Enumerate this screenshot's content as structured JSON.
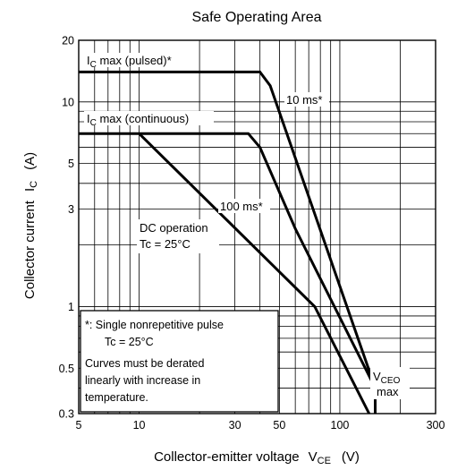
{
  "chart_data": {
    "type": "line",
    "title": "Safe Operating Area",
    "xscale": "log",
    "yscale": "log",
    "xlim": [
      5,
      300
    ],
    "ylim": [
      0.3,
      20
    ],
    "xlabel": {
      "main": "Collector-emitter voltage",
      "symbol": "V",
      "sub": "CE",
      "unit": "(V)"
    },
    "ylabel": {
      "main": "Collector current",
      "symbol": "I",
      "sub": "C",
      "unit": "(A)"
    },
    "xticks": [
      5,
      10,
      30,
      50,
      100,
      300
    ],
    "xtick_labels": [
      "5",
      "10",
      "30",
      "50",
      "100",
      "300"
    ],
    "yticks": [
      0.3,
      0.5,
      1,
      3,
      5,
      10,
      20
    ],
    "ytick_labels": [
      "0.3",
      "0.5",
      "1",
      "3",
      "5",
      "10",
      "20"
    ],
    "grid": true,
    "series": [
      {
        "name": "10 ms*",
        "points": [
          [
            5,
            14
          ],
          [
            40,
            14
          ],
          [
            45,
            12
          ],
          [
            150,
            0.4
          ],
          [
            150,
            0.3
          ]
        ]
      },
      {
        "name": "100 ms*",
        "points": [
          [
            5,
            7
          ],
          [
            35,
            7
          ],
          [
            40,
            6
          ],
          [
            60,
            2.4
          ],
          [
            150,
            0.4
          ],
          [
            150,
            0.3
          ]
        ]
      },
      {
        "name": "DC operation",
        "points": [
          [
            10,
            7
          ],
          [
            75,
            1
          ],
          [
            140,
            0.3
          ]
        ]
      }
    ],
    "annotations": {
      "ic_pulsed": {
        "main": "I",
        "sub": "C",
        "rest": " max (pulsed)*"
      },
      "ic_continuous": {
        "main": "I",
        "sub": "C",
        "rest": " max (continuous)"
      },
      "label_10ms": "10 ms*",
      "label_100ms": "100 ms*",
      "dc_line1": "DC operation",
      "dc_line2": "Tc = 25°C",
      "note_line1": "*:  Single nonrepetitive pulse",
      "note_line2": "Tc = 25°C",
      "note_line3": "Curves must be derated",
      "note_line4": "linearly with increase in",
      "note_line5": "temperature.",
      "vceo_main": "V",
      "vceo_sub": "CEO",
      "vceo_line2": "max"
    }
  }
}
